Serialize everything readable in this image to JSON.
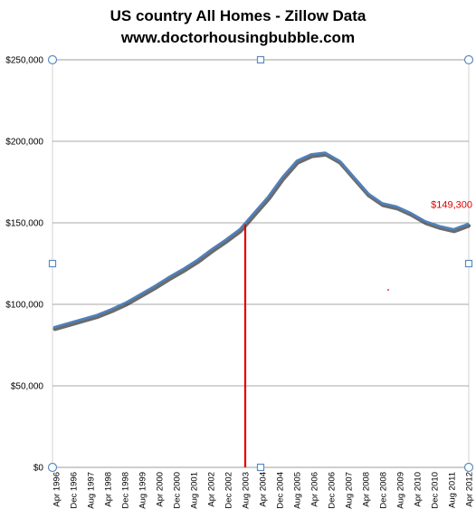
{
  "title": "US country All Homes - Zillow Data",
  "subtitle": "www.doctorhousingbubble.com",
  "colors": {
    "series": "#4f81bd",
    "shadow": "#3a3a3a",
    "marker_line": "#e00000",
    "annotation": "#e00000",
    "grid": "#8c8c8c",
    "handle": "#5b8cc0"
  },
  "chart_data": {
    "type": "line",
    "title": "US country All Homes - Zillow Data",
    "subtitle": "www.doctorhousingbubble.com",
    "xlabel": "",
    "ylabel": "",
    "ylim": [
      0,
      250000
    ],
    "y_ticks": [
      0,
      50000,
      100000,
      150000,
      200000,
      250000
    ],
    "y_tick_labels": [
      "$0",
      "$50,000",
      "$100,000",
      "$150,000",
      "$200,000",
      "$250,000"
    ],
    "grid": true,
    "x_tick_labels": [
      "Apr 1996",
      "Dec 1996",
      "Aug 1997",
      "Apr 1998",
      "Dec 1998",
      "Aug 1999",
      "Apr 2000",
      "Dec 2000",
      "Aug 2001",
      "Apr 2002",
      "Dec 2002",
      "Aug 2003",
      "Apr 2004",
      "Dec 2004",
      "Aug 2005",
      "Apr 2006",
      "Dec 2006",
      "Aug 2007",
      "Apr 2008",
      "Dec 2008",
      "Aug 2009",
      "Apr 2010",
      "Dec 2010",
      "Aug 2011",
      "Apr 2012"
    ],
    "series": [
      {
        "values": [
          86000,
          88500,
          91000,
          93500,
          97000,
          101000,
          106000,
          111000,
          116500,
          121500,
          127000,
          133500,
          139500,
          146000,
          156000,
          166000,
          178000,
          188000,
          192000,
          193000,
          188000,
          178000,
          168000,
          162000,
          160000,
          156000,
          151000,
          148000,
          146000,
          149300
        ]
      }
    ],
    "marker": {
      "x": "Aug 2003",
      "value": 149000
    },
    "annotations": [
      {
        "text": "$149,300",
        "x": "Apr 2012",
        "value": 149300
      }
    ]
  }
}
